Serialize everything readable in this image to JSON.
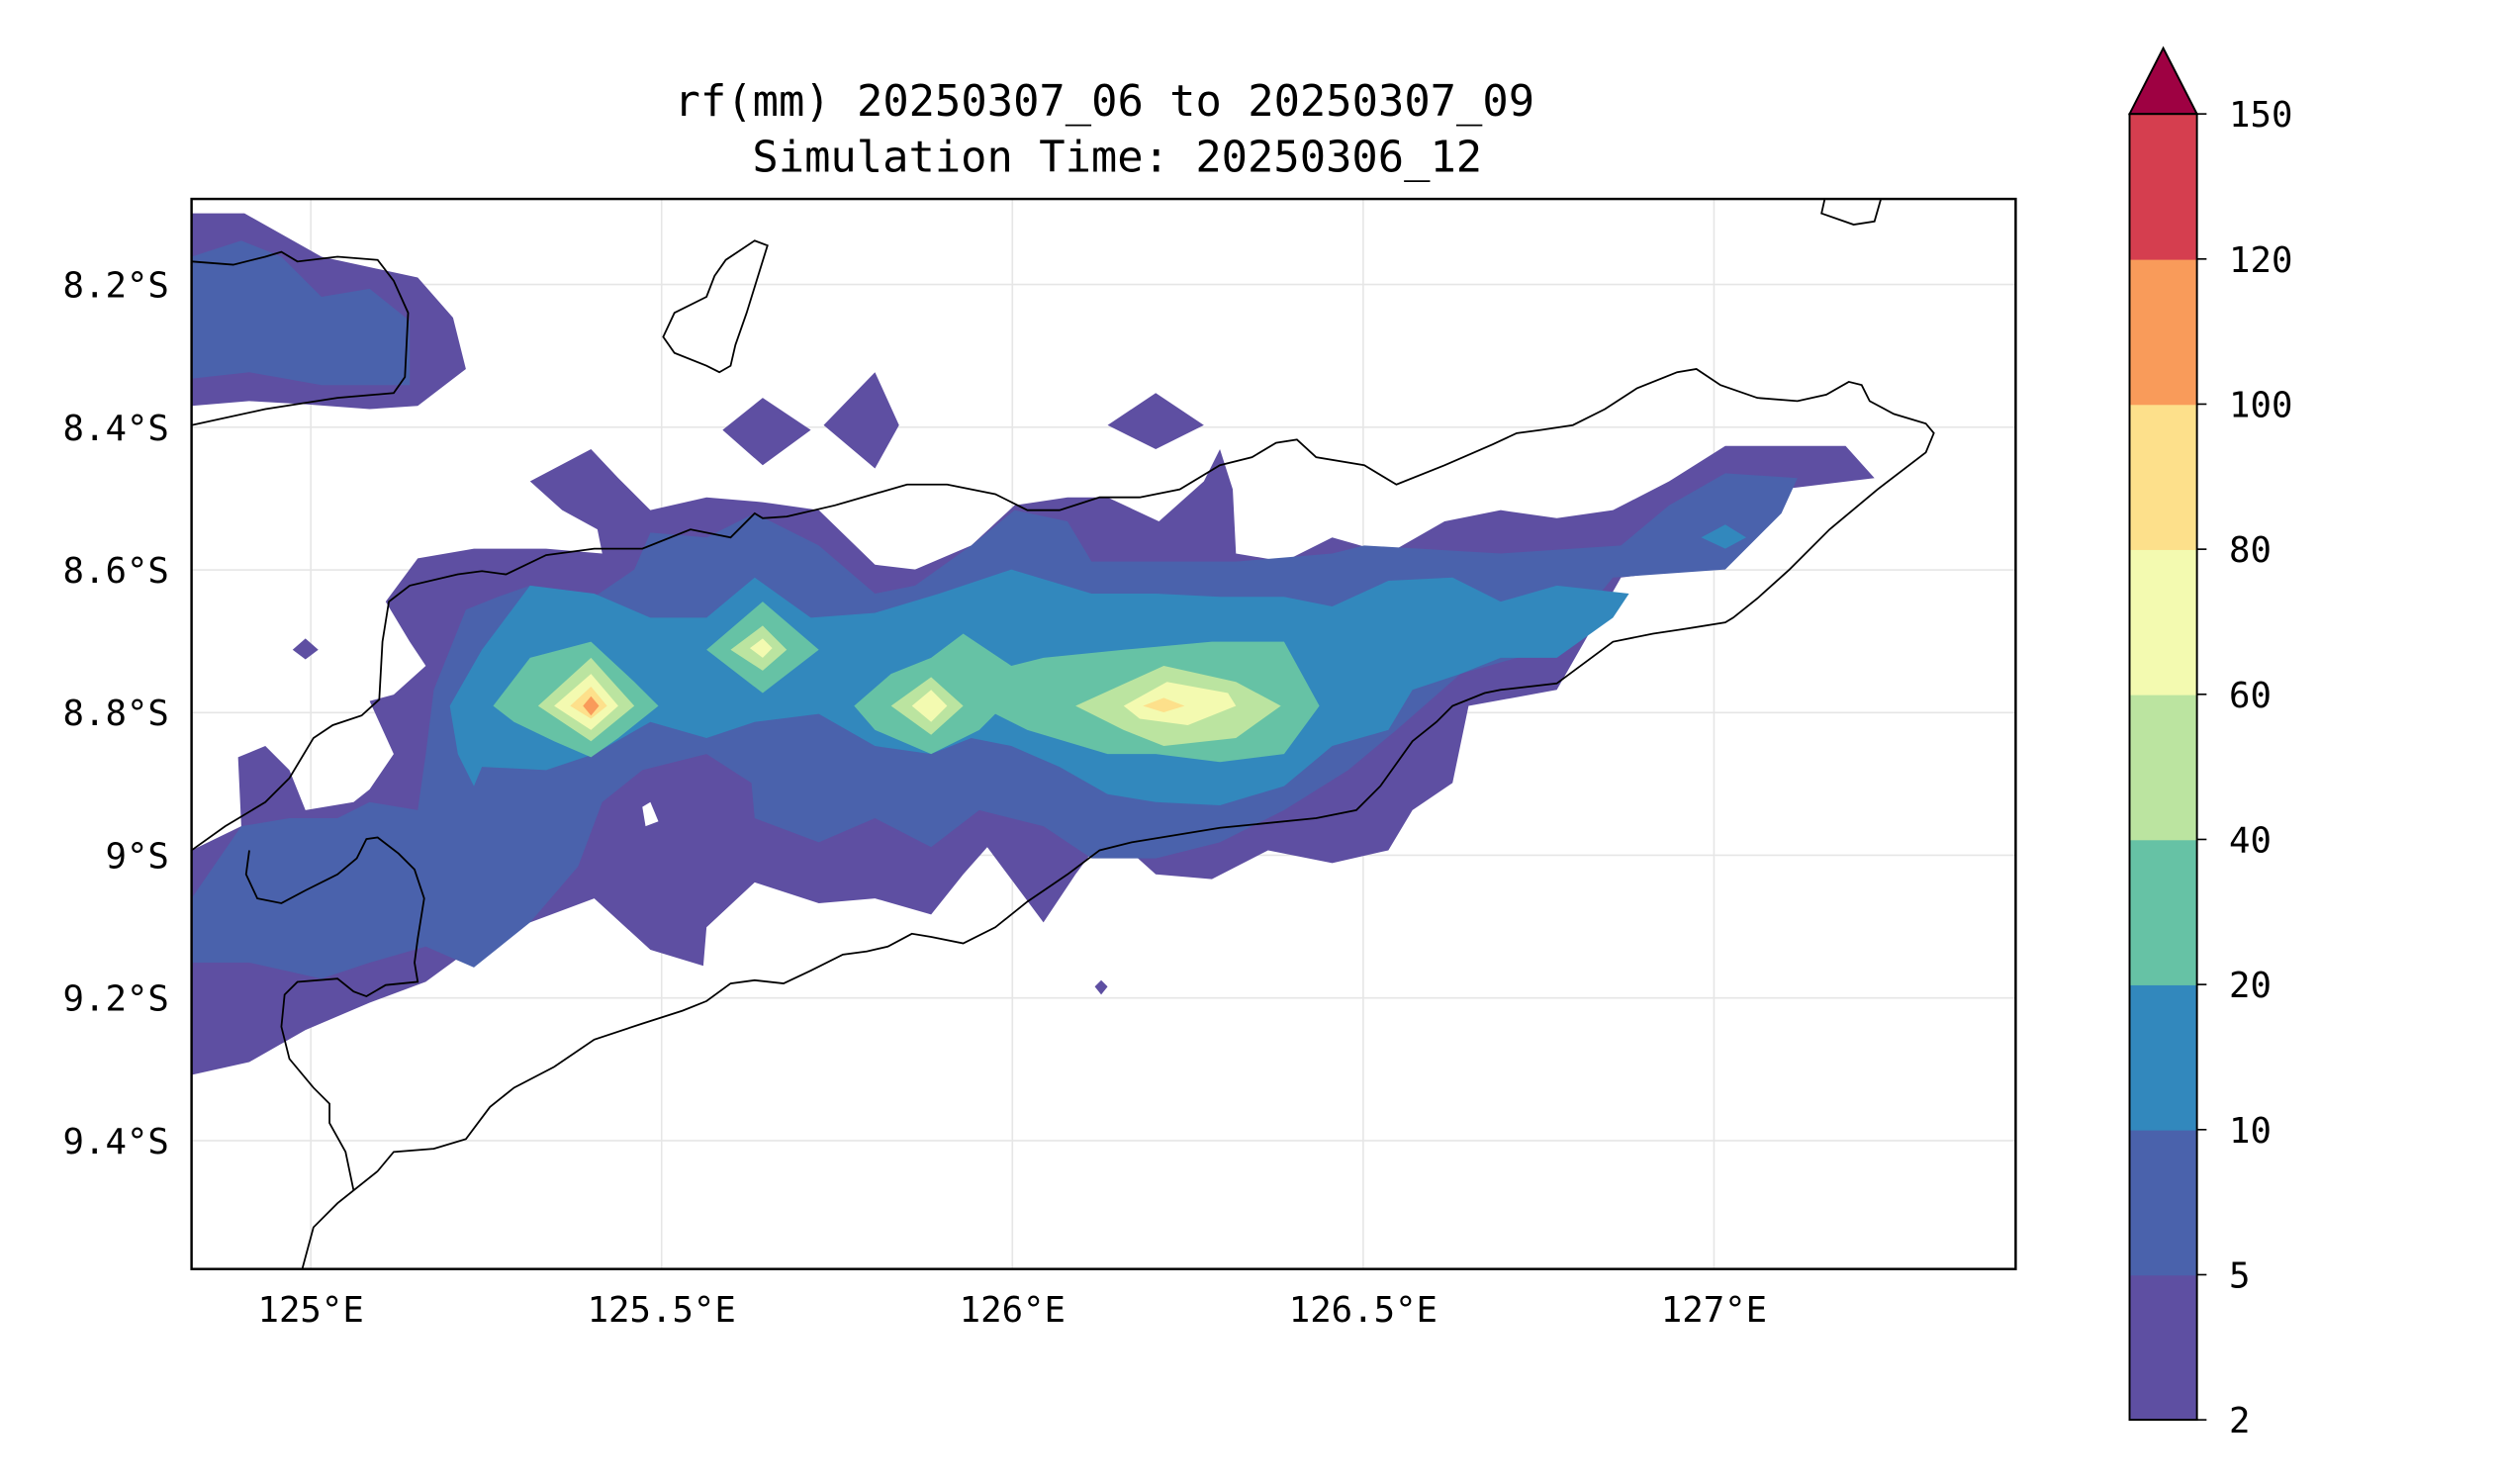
{
  "chart_data": {
    "type": "contour",
    "title": [
      "rf(mm) 20250307_06 to 20250307_09",
      "Simulation Time: 20250306_12"
    ],
    "xlabel": "",
    "ylabel": "",
    "xlim": [
      124.83,
      127.43
    ],
    "ylim": [
      -9.58,
      -8.08
    ],
    "x_ticks": [
      {
        "value": 125.0,
        "label": "125°E"
      },
      {
        "value": 125.5,
        "label": "125.5°E"
      },
      {
        "value": 126.0,
        "label": "126°E"
      },
      {
        "value": 126.5,
        "label": "126.5°E"
      },
      {
        "value": 127.0,
        "label": "127°E"
      }
    ],
    "y_ticks": [
      {
        "value": -8.2,
        "label": "8.2°S"
      },
      {
        "value": -8.4,
        "label": "8.4°S"
      },
      {
        "value": -8.6,
        "label": "8.6°S"
      },
      {
        "value": -8.8,
        "label": "8.8°S"
      },
      {
        "value": -9.0,
        "label": "9°S"
      },
      {
        "value": -9.2,
        "label": "9.2°S"
      },
      {
        "value": -9.4,
        "label": "9.4°S"
      }
    ],
    "grid": true,
    "colorbar": {
      "levels": [
        2,
        5,
        10,
        20,
        40,
        60,
        80,
        100,
        120,
        150
      ],
      "labels": [
        "2",
        "5",
        "10",
        "20",
        "40",
        "60",
        "80",
        "100",
        "120",
        "150"
      ],
      "colors": [
        "#5e4fa2",
        "#4a62ac",
        "#3288bd",
        "#66c2a5",
        "#bbe4a0",
        "#f3fab0",
        "#fde08b",
        "#f99b5a",
        "#d53e4f"
      ],
      "extend_color": "#9e0142",
      "extend": "max",
      "placement": "right"
    },
    "maxima": [
      {
        "lon": 125.4,
        "lat": -8.8,
        "band": "100-120"
      },
      {
        "lon": 125.65,
        "lat": -8.72,
        "band": "60-80"
      },
      {
        "lon": 125.88,
        "lat": -8.8,
        "band": "60-80"
      },
      {
        "lon": 126.22,
        "lat": -8.8,
        "band": "80-100"
      }
    ]
  }
}
